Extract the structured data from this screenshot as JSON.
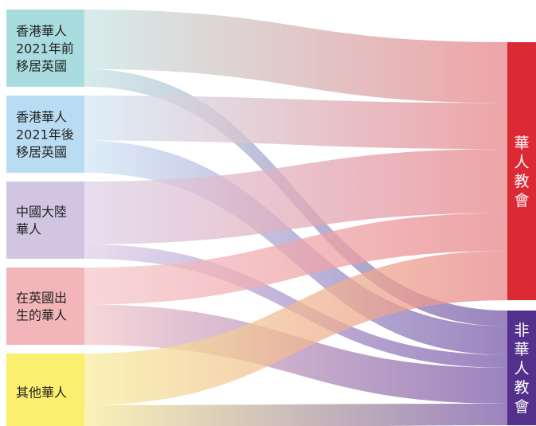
{
  "diagram": {
    "type": "sankey",
    "sources": [
      {
        "id": "hk_before",
        "label_lines": [
          "香港華人",
          "2021年前",
          "移居英國"
        ],
        "color": "#a9dcde",
        "flow_color": "#c8e6e4"
      },
      {
        "id": "hk_after",
        "label_lines": [
          "香港華人",
          "2021年後",
          "移居英國"
        ],
        "color": "#b9dcf3",
        "flow_color": "#d4e8f7"
      },
      {
        "id": "mainland",
        "label_lines": [
          "中國大陸",
          "華人"
        ],
        "color": "#d1c6e2",
        "flow_color": "#ddd3ea"
      },
      {
        "id": "uk_born",
        "label_lines": [
          "在英國出",
          "生的華人"
        ],
        "color": "#f2b5b9",
        "flow_color": "#f5c9cc"
      },
      {
        "id": "other",
        "label_lines": [
          "其他華人"
        ],
        "color": "#fbef6f",
        "flow_color": "#f8ee9e"
      }
    ],
    "targets": [
      {
        "id": "chinese_church",
        "label_chars": [
          "華",
          "人",
          "教",
          "會"
        ],
        "color": "#dc2a35",
        "flow_color": "#e8868a"
      },
      {
        "id": "non_chinese_church",
        "label_chars": [
          "非",
          "華",
          "人",
          "教",
          "會"
        ],
        "color": "#53308c",
        "flow_color": "#7a5aa8"
      }
    ],
    "links": [
      {
        "source": "hk_before",
        "target": "chinese_church",
        "value": 74
      },
      {
        "source": "hk_before",
        "target": "non_chinese_church",
        "value": 22
      },
      {
        "source": "hk_after",
        "target": "chinese_church",
        "value": 56
      },
      {
        "source": "hk_after",
        "target": "non_chinese_church",
        "value": 40
      },
      {
        "source": "mainland",
        "target": "chinese_church",
        "value": 78
      },
      {
        "source": "mainland",
        "target": "non_chinese_church",
        "value": 18
      },
      {
        "source": "uk_born",
        "target": "chinese_church",
        "value": 46
      },
      {
        "source": "uk_born",
        "target": "non_chinese_church",
        "value": 50
      },
      {
        "source": "other",
        "target": "chinese_church",
        "value": 60
      },
      {
        "source": "other",
        "target": "non_chinese_church",
        "value": 30
      }
    ]
  }
}
